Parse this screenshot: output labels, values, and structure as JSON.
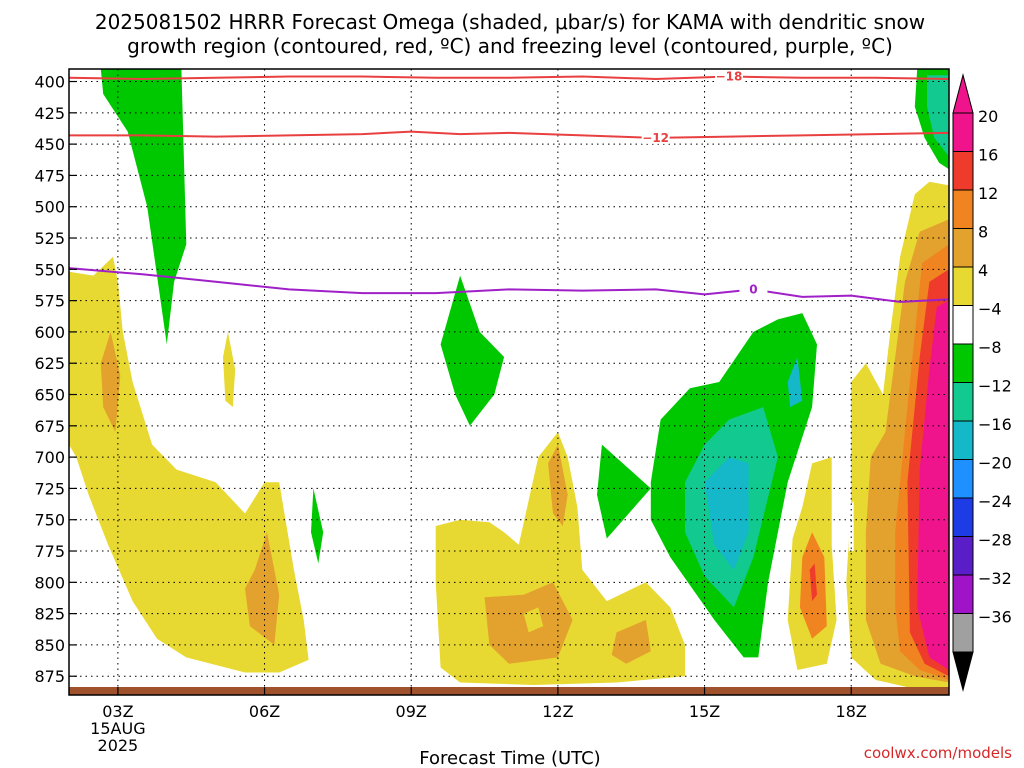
{
  "chart_data": {
    "type": "heatmap",
    "title_lines": [
      "2025081502 HRRR Forecast Omega (shaded, μbar/s) for KAMA with dendritic snow",
      "growth region (contoured, red, ºC) and freezing level (contoured, purple, ºC)"
    ],
    "xlabel": "Forecast Time (UTC)",
    "x_range_hours": [
      2.0,
      20.0
    ],
    "x_ticks": [
      {
        "hour": 3,
        "label": "03Z",
        "sub": [
          "15AUG",
          "2025"
        ]
      },
      {
        "hour": 6,
        "label": "06Z"
      },
      {
        "hour": 9,
        "label": "09Z"
      },
      {
        "hour": 12,
        "label": "12Z"
      },
      {
        "hour": 15,
        "label": "15Z"
      },
      {
        "hour": 18,
        "label": "18Z"
      }
    ],
    "y_range_mb": [
      390,
      890
    ],
    "y_ticks": [
      400,
      425,
      450,
      475,
      500,
      525,
      550,
      575,
      600,
      625,
      650,
      675,
      700,
      725,
      750,
      775,
      800,
      825,
      850,
      875
    ],
    "grid": true,
    "colorbar": {
      "labels": [
        "20",
        "16",
        "12",
        "8",
        "4",
        "−4",
        "−8",
        "−12",
        "−16",
        "−20",
        "−24",
        "−28",
        "−32",
        "−36"
      ],
      "colors": [
        "#f0148c",
        "#ee3b2b",
        "#f08420",
        "#e3a12e",
        "#e8d832",
        "#ffffff",
        "#00c800",
        "#12c98f",
        "#14b8c8",
        "#1e90ff",
        "#1e3ce6",
        "#5a1ec8",
        "#a014c8",
        "#a0a0a0"
      ]
    },
    "contours": [
      {
        "label": "−18",
        "color": "#e84040",
        "hours": [
          2.0,
          3.5,
          5.0,
          6.5,
          8.0,
          9.5,
          11.0,
          12.5,
          14.0,
          15.5,
          17.0,
          18.5,
          20.0
        ],
        "pressure": [
          397,
          398,
          397,
          396,
          396,
          397,
          397,
          396,
          398,
          396,
          397,
          397,
          398
        ]
      },
      {
        "label": "−12",
        "color": "#e84040",
        "hours": [
          2.0,
          3.5,
          5.0,
          6.5,
          8.0,
          9.0,
          10.0,
          11.0,
          12.5,
          14.0,
          15.5,
          17.0,
          18.5,
          20.0
        ],
        "pressure": [
          443,
          443,
          444,
          443,
          442,
          440,
          442,
          441,
          443,
          445,
          444,
          443,
          442,
          441
        ]
      },
      {
        "label": "0",
        "color": "#a020c8",
        "hours": [
          2.0,
          3.5,
          5.0,
          6.5,
          8.0,
          9.5,
          11.0,
          12.5,
          14.0,
          15.0,
          16.0,
          17.0,
          18.0,
          19.0,
          20.0
        ],
        "pressure": [
          549,
          554,
          560,
          566,
          569,
          569,
          566,
          567,
          566,
          570,
          566,
          572,
          571,
          576,
          574
        ]
      }
    ],
    "omega_regions": [
      {
        "value": -6,
        "color": "#00c800",
        "pts": [
          [
            2.65,
            390
          ],
          [
            4.3,
            390
          ],
          [
            4.4,
            530
          ],
          [
            4.15,
            560
          ],
          [
            4.0,
            610
          ],
          [
            3.6,
            500
          ],
          [
            3.2,
            440
          ],
          [
            2.7,
            410
          ]
        ]
      },
      {
        "value": -6,
        "color": "#00c800",
        "pts": [
          [
            19.35,
            390
          ],
          [
            20.0,
            390
          ],
          [
            20.0,
            470
          ],
          [
            19.8,
            465
          ],
          [
            19.5,
            445
          ],
          [
            19.3,
            420
          ]
        ]
      },
      {
        "value": -10,
        "color": "#12c98f",
        "pts": [
          [
            19.55,
            395
          ],
          [
            20.0,
            395
          ],
          [
            20.0,
            460
          ],
          [
            19.7,
            445
          ],
          [
            19.55,
            420
          ]
        ]
      },
      {
        "value": -6,
        "color": "#00c800",
        "pts": [
          [
            10.0,
            555
          ],
          [
            10.4,
            600
          ],
          [
            10.9,
            620
          ],
          [
            10.7,
            650
          ],
          [
            10.2,
            675
          ],
          [
            9.9,
            650
          ],
          [
            9.6,
            610
          ]
        ]
      },
      {
        "value": -6,
        "color": "#00c800",
        "pts": [
          [
            7.0,
            725
          ],
          [
            7.2,
            760
          ],
          [
            7.1,
            785
          ],
          [
            6.95,
            760
          ]
        ]
      },
      {
        "value": -6,
        "color": "#00c800",
        "pts": [
          [
            12.9,
            690
          ],
          [
            13.9,
            725
          ],
          [
            13.0,
            765
          ],
          [
            12.8,
            730
          ]
        ]
      },
      {
        "value": -6,
        "color": "#00c800",
        "pts": [
          [
            13.9,
            720
          ],
          [
            14.1,
            670
          ],
          [
            14.7,
            645
          ],
          [
            15.3,
            640
          ],
          [
            16.0,
            600
          ],
          [
            16.5,
            590
          ],
          [
            17.0,
            585
          ],
          [
            17.3,
            610
          ],
          [
            17.2,
            660
          ],
          [
            16.7,
            720
          ],
          [
            16.3,
            800
          ],
          [
            16.1,
            860
          ],
          [
            15.8,
            860
          ],
          [
            15.2,
            830
          ],
          [
            14.3,
            780
          ],
          [
            13.9,
            750
          ]
        ]
      },
      {
        "value": -10,
        "color": "#12c98f",
        "pts": [
          [
            14.6,
            720
          ],
          [
            15.0,
            690
          ],
          [
            15.5,
            670
          ],
          [
            16.2,
            660
          ],
          [
            16.5,
            700
          ],
          [
            16.0,
            780
          ],
          [
            15.6,
            820
          ],
          [
            15.0,
            795
          ],
          [
            14.6,
            760
          ]
        ]
      },
      {
        "value": -14,
        "color": "#14b8c8",
        "pts": [
          [
            15.0,
            720
          ],
          [
            15.5,
            700
          ],
          [
            15.9,
            705
          ],
          [
            15.9,
            760
          ],
          [
            15.6,
            790
          ],
          [
            15.2,
            770
          ]
        ]
      },
      {
        "value": -14,
        "color": "#14b8c8",
        "pts": [
          [
            16.7,
            640
          ],
          [
            16.9,
            620
          ],
          [
            17.0,
            655
          ],
          [
            16.75,
            660
          ]
        ]
      },
      {
        "value": 6,
        "color": "#e8d832",
        "pts": [
          [
            2.0,
            552
          ],
          [
            2.5,
            555
          ],
          [
            2.9,
            540
          ],
          [
            3.0,
            560
          ],
          [
            3.1,
            600
          ],
          [
            3.3,
            640
          ],
          [
            3.7,
            690
          ],
          [
            4.2,
            710
          ],
          [
            5.0,
            720
          ],
          [
            5.6,
            745
          ],
          [
            6.0,
            720
          ],
          [
            6.3,
            720
          ],
          [
            6.6,
            790
          ],
          [
            6.8,
            830
          ],
          [
            6.9,
            862
          ],
          [
            6.3,
            872
          ],
          [
            5.6,
            872
          ],
          [
            4.4,
            860
          ],
          [
            3.8,
            845
          ],
          [
            3.3,
            815
          ],
          [
            2.8,
            770
          ],
          [
            2.4,
            730
          ],
          [
            2.15,
            700
          ],
          [
            2.0,
            690
          ]
        ]
      },
      {
        "value": 10,
        "color": "#e3a12e",
        "pts": [
          [
            2.85,
            600
          ],
          [
            3.05,
            635
          ],
          [
            2.95,
            680
          ],
          [
            2.7,
            660
          ],
          [
            2.65,
            625
          ]
        ]
      },
      {
        "value": 10,
        "color": "#e3a12e",
        "pts": [
          [
            6.05,
            760
          ],
          [
            6.3,
            810
          ],
          [
            6.2,
            850
          ],
          [
            5.7,
            835
          ],
          [
            5.6,
            805
          ],
          [
            5.8,
            790
          ]
        ]
      },
      {
        "value": 6,
        "color": "#e8d832",
        "pts": [
          [
            5.25,
            600
          ],
          [
            5.4,
            630
          ],
          [
            5.35,
            660
          ],
          [
            5.2,
            655
          ],
          [
            5.15,
            620
          ]
        ]
      },
      {
        "value": 6,
        "color": "#e8d832",
        "pts": [
          [
            9.5,
            755
          ],
          [
            10.0,
            750
          ],
          [
            10.6,
            752
          ],
          [
            10.9,
            760
          ],
          [
            11.2,
            770
          ],
          [
            11.6,
            700
          ],
          [
            12.0,
            680
          ],
          [
            12.2,
            700
          ],
          [
            12.4,
            740
          ],
          [
            12.5,
            790
          ],
          [
            13.0,
            815
          ],
          [
            13.8,
            800
          ],
          [
            14.3,
            820
          ],
          [
            14.6,
            850
          ],
          [
            14.6,
            875
          ],
          [
            13.2,
            880
          ],
          [
            11.5,
            882
          ],
          [
            10.0,
            880
          ],
          [
            9.6,
            868
          ],
          [
            9.5,
            800
          ]
        ]
      },
      {
        "value": 10,
        "color": "#e3a12e",
        "pts": [
          [
            11.8,
            705
          ],
          [
            12.0,
            690
          ],
          [
            12.2,
            730
          ],
          [
            12.1,
            755
          ],
          [
            11.9,
            745
          ]
        ]
      },
      {
        "value": 10,
        "color": "#e3a12e",
        "pts": [
          [
            10.5,
            812
          ],
          [
            11.3,
            810
          ],
          [
            11.9,
            800
          ],
          [
            12.3,
            830
          ],
          [
            12.0,
            860
          ],
          [
            11.0,
            865
          ],
          [
            10.6,
            850
          ]
        ]
      },
      {
        "value": 10,
        "color": "#e3a12e",
        "pts": [
          [
            13.2,
            840
          ],
          [
            13.8,
            830
          ],
          [
            13.9,
            855
          ],
          [
            13.4,
            865
          ],
          [
            13.1,
            858
          ]
        ]
      },
      {
        "value": 6,
        "color": "#e8d832",
        "pts": [
          [
            11.3,
            825
          ],
          [
            11.6,
            820
          ],
          [
            11.7,
            835
          ],
          [
            11.4,
            840
          ]
        ]
      },
      {
        "value": 6,
        "color": "#e8d832",
        "pts": [
          [
            16.8,
            765
          ],
          [
            17.0,
            740
          ],
          [
            17.2,
            705
          ],
          [
            17.6,
            700
          ],
          [
            17.6,
            770
          ],
          [
            17.7,
            830
          ],
          [
            17.5,
            865
          ],
          [
            16.9,
            870
          ],
          [
            16.7,
            830
          ]
        ]
      },
      {
        "value": 12,
        "color": "#f08420",
        "pts": [
          [
            17.0,
            780
          ],
          [
            17.2,
            760
          ],
          [
            17.45,
            780
          ],
          [
            17.5,
            835
          ],
          [
            17.2,
            845
          ],
          [
            16.95,
            820
          ]
        ]
      },
      {
        "value": 18,
        "color": "#ee3b2b",
        "pts": [
          [
            17.15,
            790
          ],
          [
            17.25,
            785
          ],
          [
            17.3,
            810
          ],
          [
            17.2,
            815
          ]
        ]
      },
      {
        "value": 6,
        "color": "#e8d832",
        "pts": [
          [
            17.9,
            800
          ],
          [
            18.0,
            735
          ],
          [
            18.0,
            640
          ],
          [
            18.3,
            625
          ],
          [
            18.65,
            650
          ],
          [
            18.8,
            600
          ],
          [
            19.0,
            540
          ],
          [
            19.3,
            490
          ],
          [
            19.6,
            480
          ],
          [
            20.0,
            483
          ],
          [
            20.0,
            885
          ],
          [
            19.3,
            885
          ],
          [
            18.5,
            878
          ],
          [
            18.0,
            860
          ]
        ]
      },
      {
        "value": 10,
        "color": "#e3a12e",
        "pts": [
          [
            18.3,
            760
          ],
          [
            18.4,
            700
          ],
          [
            18.7,
            680
          ],
          [
            19.1,
            560
          ],
          [
            19.4,
            520
          ],
          [
            20.0,
            510
          ],
          [
            20.0,
            880
          ],
          [
            19.3,
            875
          ],
          [
            18.6,
            865
          ],
          [
            18.3,
            830
          ]
        ]
      },
      {
        "value": 14,
        "color": "#f08420",
        "pts": [
          [
            18.9,
            760
          ],
          [
            19.2,
            640
          ],
          [
            19.45,
            545
          ],
          [
            20.0,
            530
          ],
          [
            20.0,
            878
          ],
          [
            19.4,
            870
          ],
          [
            19.0,
            855
          ],
          [
            18.9,
            820
          ]
        ]
      },
      {
        "value": 18,
        "color": "#ee3b2b",
        "pts": [
          [
            19.15,
            720
          ],
          [
            19.4,
            620
          ],
          [
            19.6,
            560
          ],
          [
            20.0,
            550
          ],
          [
            20.0,
            875
          ],
          [
            19.5,
            865
          ],
          [
            19.2,
            840
          ]
        ]
      },
      {
        "value": 22,
        "color": "#f0148c",
        "pts": [
          [
            19.4,
            710
          ],
          [
            19.6,
            630
          ],
          [
            19.75,
            580
          ],
          [
            20.0,
            575
          ],
          [
            20.0,
            870
          ],
          [
            19.6,
            860
          ],
          [
            19.35,
            820
          ]
        ]
      },
      {
        "value": 2,
        "color": "#ffffff",
        "pts": [
          [
            17.95,
            740
          ],
          [
            18.05,
            735
          ],
          [
            18.05,
            775
          ],
          [
            17.95,
            775
          ]
        ]
      }
    ]
  },
  "credit": "coolwx.com/models"
}
